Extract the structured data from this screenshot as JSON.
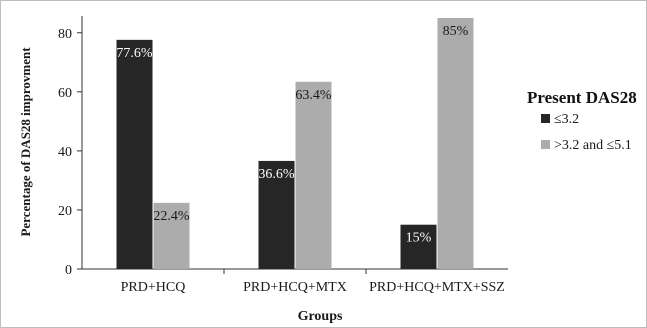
{
  "chart_data": {
    "type": "bar",
    "title": "",
    "xlabel": "Groups",
    "ylabel": "Percentage of DAS28 improvment",
    "ylim": [
      0,
      85
    ],
    "yticks": [
      0,
      20,
      40,
      60,
      80
    ],
    "categories": [
      "PRD+HCQ",
      "PRD+HCQ+MTX",
      "PRD+HCQ+MTX+SSZ"
    ],
    "legend_title": "Present DAS28",
    "legend_position": "right",
    "grid": false,
    "series": [
      {
        "name": "≤3.2",
        "color": "#262626",
        "values": [
          77.6,
          36.6,
          15
        ],
        "labels": [
          "77.6%",
          "36.6%",
          "15%"
        ]
      },
      {
        "name": ">3.2 and ≤5.1",
        "color": "#acacac",
        "values": [
          22.4,
          63.4,
          85
        ],
        "labels": [
          "22.4%",
          "63.4%",
          "85%"
        ]
      }
    ]
  }
}
